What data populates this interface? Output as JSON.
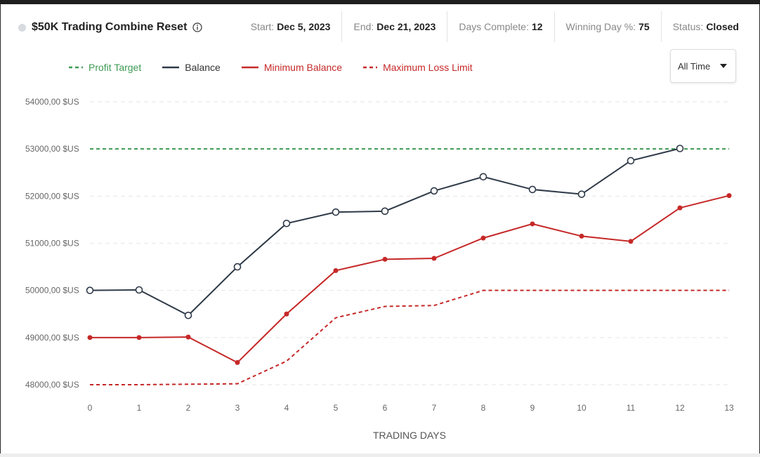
{
  "header": {
    "title": "$50K Trading Combine Reset",
    "stats": [
      {
        "label": "Start:",
        "value": "Dec 5, 2023"
      },
      {
        "label": "End:",
        "value": "Dec 21, 2023"
      },
      {
        "label": "Days Complete:",
        "value": "12"
      },
      {
        "label": "Winning Day %:",
        "value": "75"
      },
      {
        "label": "Status:",
        "value": "Closed"
      }
    ]
  },
  "legend": {
    "items": [
      {
        "label": "Profit Target",
        "color": "#3d9a52",
        "style": "dashed"
      },
      {
        "label": "Balance",
        "color": "#2f3a48",
        "style": "solid"
      },
      {
        "label": "Minimum Balance",
        "color": "#c62828",
        "style": "solid"
      },
      {
        "label": "Maximum Loss Limit",
        "color": "#c62828",
        "style": "dashed"
      }
    ]
  },
  "dropdown": {
    "label": "All Time"
  },
  "chart_data": {
    "type": "line",
    "xlabel": "TRADING DAYS",
    "ylabel": "",
    "x": [
      0,
      1,
      2,
      3,
      4,
      5,
      6,
      7,
      8,
      9,
      10,
      11,
      12,
      13
    ],
    "ylim": [
      48000,
      54000
    ],
    "yticks": [
      54000,
      53000,
      52000,
      51000,
      50000,
      49000,
      48000
    ],
    "ytick_labels": [
      "54000,00 $US",
      "53000,00 $US",
      "52000,00 $US",
      "51000,00 $US",
      "50000,00 $US",
      "49000,00 $US",
      "48000,00 $US"
    ],
    "xtick_labels": [
      "0",
      "1",
      "2",
      "3",
      "4",
      "5",
      "6",
      "7",
      "8",
      "9",
      "10",
      "11",
      "12",
      "13"
    ],
    "grid": true,
    "legend_position": "top-left",
    "series": [
      {
        "name": "Profit Target",
        "color": "#3d9a52",
        "style": "dashed",
        "x": [
          0,
          13
        ],
        "values": [
          53000,
          53000
        ]
      },
      {
        "name": "Balance",
        "color": "#2f3a48",
        "style": "solid",
        "markers": "hollow",
        "x": [
          0,
          1,
          2,
          3,
          4,
          5,
          6,
          7,
          8,
          9,
          10,
          11,
          12
        ],
        "values": [
          50000,
          50010,
          49470,
          50500,
          51420,
          51660,
          51680,
          52110,
          52410,
          52140,
          52040,
          52750,
          53010
        ]
      },
      {
        "name": "Minimum Balance",
        "color": "#c62828",
        "style": "solid",
        "markers": "filled",
        "x": [
          0,
          1,
          2,
          3,
          4,
          5,
          6,
          7,
          8,
          9,
          10,
          11,
          12,
          13
        ],
        "values": [
          49000,
          49000,
          49010,
          48470,
          49500,
          50420,
          50660,
          50680,
          51110,
          51410,
          51150,
          51040,
          51750,
          52010
        ]
      },
      {
        "name": "Maximum Loss Limit",
        "color": "#c62828",
        "style": "dashed",
        "x": [
          0,
          1,
          2,
          3,
          4,
          5,
          6,
          7,
          8,
          9,
          10,
          11,
          12,
          13
        ],
        "values": [
          48000,
          48000,
          48010,
          48020,
          48500,
          49420,
          49660,
          49680,
          50000,
          50000,
          50000,
          50000,
          50000,
          50000
        ]
      }
    ]
  }
}
